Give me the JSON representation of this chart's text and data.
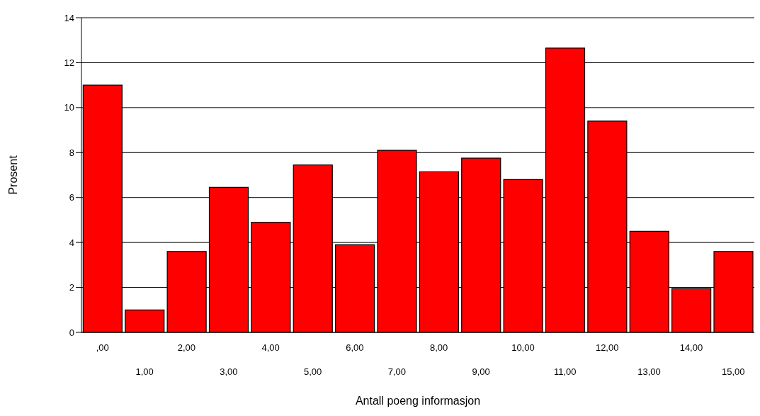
{
  "chart_data": {
    "type": "bar",
    "xlabel": "Antall poeng informasjon",
    "ylabel": "Prosent",
    "categories": [
      ",00",
      "1,00",
      "2,00",
      "3,00",
      "4,00",
      "5,00",
      "6,00",
      "7,00",
      "8,00",
      "9,00",
      "10,00",
      "11,00",
      "12,00",
      "13,00",
      "14,00",
      "15,00"
    ],
    "values": [
      11.0,
      1.0,
      3.6,
      6.45,
      4.9,
      7.45,
      3.9,
      8.1,
      7.15,
      7.75,
      6.8,
      12.65,
      9.4,
      4.5,
      1.95,
      3.6
    ],
    "color": "#ff0000",
    "ylim": [
      0,
      14
    ],
    "yticks": [
      0,
      2,
      4,
      6,
      8,
      10,
      12,
      14
    ],
    "grid": "y",
    "legend": false
  }
}
